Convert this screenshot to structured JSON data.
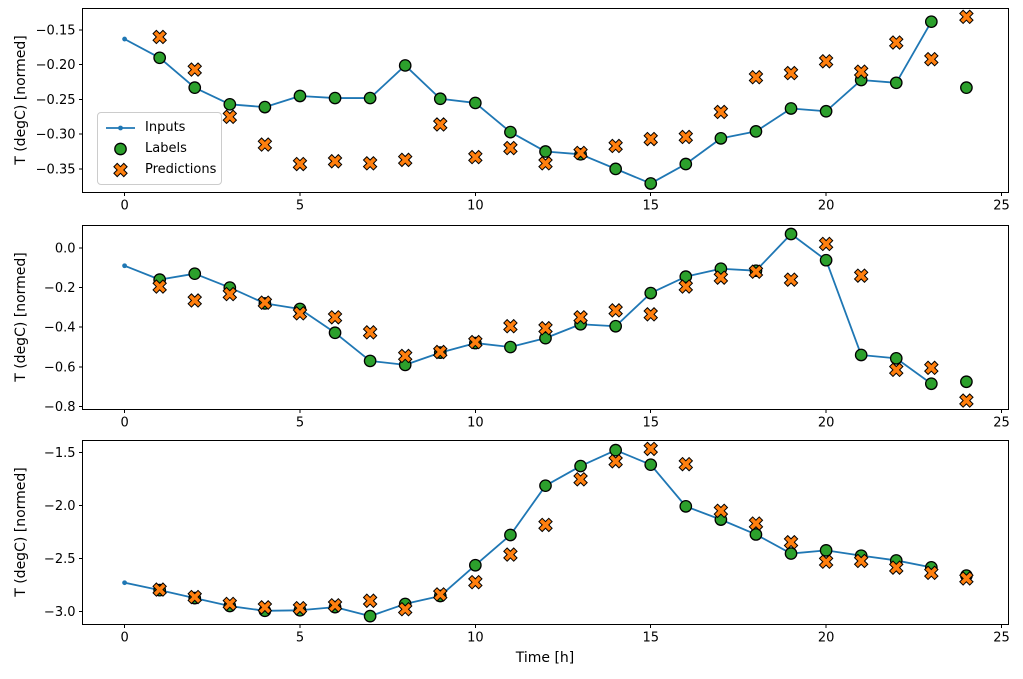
{
  "figure": {
    "background": "#ffffff"
  },
  "colors": {
    "inputs": "#1f77b4",
    "labels": "#2ca02c",
    "predictions": "#ff7f0e",
    "marker_edge": "#000000",
    "spine": "#000000",
    "text": "#000000"
  },
  "legend": {
    "position": "upper left of subplot 1",
    "items": [
      {
        "label": "Inputs",
        "marker": "line-with-dot",
        "color": "#1f77b4"
      },
      {
        "label": "Labels",
        "marker": "circle",
        "color": "#2ca02c"
      },
      {
        "label": "Predictions",
        "marker": "thick-x",
        "color": "#ff7f0e"
      }
    ]
  },
  "chart_data": [
    {
      "type": "line+scatter",
      "title": "",
      "xlabel": "",
      "ylabel": "T (degC) [normed]",
      "grid": false,
      "legend_position": "upper-left-inset",
      "xlim": [
        -1.2,
        25.2
      ],
      "ylim": [
        -0.384,
        -0.119
      ],
      "xticks": [
        0,
        5,
        10,
        15,
        20,
        25
      ],
      "xtick_labels": [
        "0",
        "5",
        "10",
        "15",
        "20",
        "25"
      ],
      "yticks": [
        -0.15,
        -0.2,
        -0.25,
        -0.3,
        -0.35
      ],
      "ytick_labels": [
        "−0.15",
        "−0.20",
        "−0.25",
        "−0.30",
        "−0.35"
      ],
      "series": [
        {
          "name": "Inputs",
          "style": "line-dot",
          "x": [
            0,
            1,
            2,
            3,
            4,
            5,
            6,
            7,
            8,
            9,
            10,
            11,
            12,
            13,
            14,
            15,
            16,
            17,
            18,
            19,
            20,
            21,
            22,
            23
          ],
          "y": [
            -0.163,
            -0.19,
            -0.233,
            -0.257,
            -0.261,
            -0.245,
            -0.248,
            -0.248,
            -0.201,
            -0.249,
            -0.255,
            -0.297,
            -0.325,
            -0.329,
            -0.35,
            -0.371,
            -0.343,
            -0.306,
            -0.296,
            -0.263,
            -0.267,
            -0.222,
            -0.226,
            -0.138
          ]
        },
        {
          "name": "Labels",
          "style": "scatter-circle",
          "x": [
            1,
            2,
            3,
            4,
            5,
            6,
            7,
            8,
            9,
            10,
            11,
            12,
            13,
            14,
            15,
            16,
            17,
            18,
            19,
            20,
            21,
            22,
            23,
            24
          ],
          "y": [
            -0.19,
            -0.233,
            -0.257,
            -0.261,
            -0.245,
            -0.248,
            -0.248,
            -0.201,
            -0.249,
            -0.255,
            -0.297,
            -0.325,
            -0.329,
            -0.35,
            -0.371,
            -0.343,
            -0.306,
            -0.296,
            -0.263,
            -0.267,
            -0.222,
            -0.226,
            -0.138,
            -0.233
          ]
        },
        {
          "name": "Predictions",
          "style": "scatter-x",
          "x": [
            1,
            2,
            3,
            4,
            5,
            6,
            7,
            8,
            9,
            10,
            11,
            12,
            13,
            14,
            15,
            16,
            17,
            18,
            19,
            20,
            21,
            22,
            23,
            24
          ],
          "y": [
            -0.16,
            -0.207,
            -0.275,
            -0.315,
            -0.343,
            -0.339,
            -0.342,
            -0.337,
            -0.286,
            -0.333,
            -0.32,
            -0.342,
            -0.327,
            -0.317,
            -0.307,
            -0.304,
            -0.268,
            -0.218,
            -0.212,
            -0.195,
            -0.21,
            -0.168,
            -0.192,
            -0.131
          ]
        }
      ]
    },
    {
      "type": "line+scatter",
      "title": "",
      "xlabel": "",
      "ylabel": "T (degC) [normed]",
      "grid": false,
      "xlim": [
        -1.2,
        25.2
      ],
      "ylim": [
        -0.815,
        0.113
      ],
      "xticks": [
        0,
        5,
        10,
        15,
        20,
        25
      ],
      "xtick_labels": [
        "0",
        "5",
        "10",
        "15",
        "20",
        "25"
      ],
      "yticks": [
        0.0,
        -0.2,
        -0.4,
        -0.6,
        -0.8
      ],
      "ytick_labels": [
        "0.0",
        "−0.2",
        "−0.4",
        "−0.6",
        "−0.8"
      ],
      "series": [
        {
          "name": "Inputs",
          "style": "line-dot",
          "x": [
            0,
            1,
            2,
            3,
            4,
            5,
            6,
            7,
            8,
            9,
            10,
            11,
            12,
            13,
            14,
            15,
            16,
            17,
            18,
            19,
            20,
            21,
            22,
            23
          ],
          "y": [
            -0.09,
            -0.16,
            -0.13,
            -0.2,
            -0.28,
            -0.308,
            -0.428,
            -0.57,
            -0.59,
            -0.528,
            -0.48,
            -0.5,
            -0.455,
            -0.385,
            -0.395,
            -0.228,
            -0.145,
            -0.105,
            -0.115,
            0.07,
            -0.062,
            -0.54,
            -0.557,
            -0.685
          ]
        },
        {
          "name": "Labels",
          "style": "scatter-circle",
          "x": [
            1,
            2,
            3,
            4,
            5,
            6,
            7,
            8,
            9,
            10,
            11,
            12,
            13,
            14,
            15,
            16,
            17,
            18,
            19,
            20,
            21,
            22,
            23,
            24
          ],
          "y": [
            -0.16,
            -0.13,
            -0.2,
            -0.28,
            -0.308,
            -0.428,
            -0.57,
            -0.59,
            -0.528,
            -0.48,
            -0.5,
            -0.455,
            -0.385,
            -0.395,
            -0.228,
            -0.145,
            -0.105,
            -0.115,
            0.07,
            -0.062,
            -0.54,
            -0.557,
            -0.685,
            -0.675
          ]
        },
        {
          "name": "Predictions",
          "style": "scatter-x",
          "x": [
            1,
            2,
            3,
            4,
            5,
            6,
            7,
            8,
            9,
            10,
            11,
            12,
            13,
            14,
            15,
            16,
            17,
            18,
            19,
            20,
            21,
            22,
            23,
            24
          ],
          "y": [
            -0.195,
            -0.265,
            -0.233,
            -0.276,
            -0.33,
            -0.35,
            -0.426,
            -0.545,
            -0.525,
            -0.475,
            -0.395,
            -0.405,
            -0.35,
            -0.315,
            -0.335,
            -0.195,
            -0.15,
            -0.12,
            -0.16,
            0.02,
            -0.14,
            -0.615,
            -0.605,
            -0.77
          ]
        }
      ]
    },
    {
      "type": "line+scatter",
      "title": "",
      "xlabel": "Time [h]",
      "ylabel": "T (degC) [normed]",
      "grid": false,
      "xlim": [
        -1.2,
        25.2
      ],
      "ylim": [
        -3.124,
        -1.389
      ],
      "xticks": [
        0,
        5,
        10,
        15,
        20,
        25
      ],
      "xtick_labels": [
        "0",
        "5",
        "10",
        "15",
        "20",
        "25"
      ],
      "yticks": [
        -1.5,
        -2.0,
        -2.5,
        -3.0
      ],
      "ytick_labels": [
        "−1.5",
        "−2.0",
        "−2.5",
        "−3.0"
      ],
      "series": [
        {
          "name": "Inputs",
          "style": "line-dot",
          "x": [
            0,
            1,
            2,
            3,
            4,
            5,
            6,
            7,
            8,
            9,
            10,
            11,
            12,
            13,
            14,
            15,
            16,
            17,
            18,
            19,
            20,
            21,
            22,
            23
          ],
          "y": [
            -2.73,
            -2.8,
            -2.875,
            -2.95,
            -2.995,
            -2.99,
            -2.96,
            -3.045,
            -2.93,
            -2.855,
            -2.565,
            -2.28,
            -1.815,
            -1.63,
            -1.48,
            -1.617,
            -2.01,
            -2.135,
            -2.275,
            -2.455,
            -2.425,
            -2.475,
            -2.52,
            -2.585
          ]
        },
        {
          "name": "Labels",
          "style": "scatter-circle",
          "x": [
            1,
            2,
            3,
            4,
            5,
            6,
            7,
            8,
            9,
            10,
            11,
            12,
            13,
            14,
            15,
            16,
            17,
            18,
            19,
            20,
            21,
            22,
            23,
            24
          ],
          "y": [
            -2.8,
            -2.875,
            -2.95,
            -2.995,
            -2.99,
            -2.96,
            -3.045,
            -2.93,
            -2.855,
            -2.565,
            -2.28,
            -1.815,
            -1.63,
            -1.48,
            -1.617,
            -2.01,
            -2.135,
            -2.275,
            -2.455,
            -2.425,
            -2.475,
            -2.52,
            -2.585,
            -2.663
          ]
        },
        {
          "name": "Predictions",
          "style": "scatter-x",
          "x": [
            1,
            2,
            3,
            4,
            5,
            6,
            7,
            8,
            9,
            10,
            11,
            12,
            13,
            14,
            15,
            16,
            17,
            18,
            19,
            20,
            21,
            22,
            23,
            24
          ],
          "y": [
            -2.795,
            -2.865,
            -2.93,
            -2.962,
            -2.97,
            -2.943,
            -2.9,
            -2.98,
            -2.84,
            -2.725,
            -2.465,
            -2.185,
            -1.755,
            -1.585,
            -1.468,
            -1.612,
            -2.052,
            -2.172,
            -2.348,
            -2.532,
            -2.525,
            -2.588,
            -2.637,
            -2.69
          ]
        }
      ]
    }
  ]
}
